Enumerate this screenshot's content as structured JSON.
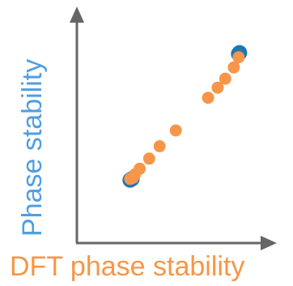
{
  "chart_data": {
    "type": "scatter",
    "title": "",
    "xlabel": "DFT phase stability",
    "ylabel": "Phase stability",
    "grid": false,
    "ticks": false,
    "axis_color": "#666666",
    "xlabel_color": "#F79646",
    "ylabel_color": "#4F9FE0",
    "xlim": [
      0,
      1
    ],
    "ylim": [
      0,
      1
    ],
    "series": [
      {
        "color": "#1F77B4",
        "points": [
          {
            "x": 0.28,
            "y": 0.28
          },
          {
            "x": 0.29,
            "y": 0.285
          },
          {
            "x": 0.85,
            "y": 0.84
          },
          {
            "x": 0.855,
            "y": 0.845
          }
        ]
      },
      {
        "color": "#F7964A",
        "points": [
          {
            "x": 0.28,
            "y": 0.285
          },
          {
            "x": 0.295,
            "y": 0.29
          },
          {
            "x": 0.305,
            "y": 0.305
          },
          {
            "x": 0.33,
            "y": 0.33
          },
          {
            "x": 0.38,
            "y": 0.375
          },
          {
            "x": 0.435,
            "y": 0.43
          },
          {
            "x": 0.52,
            "y": 0.5
          },
          {
            "x": 0.69,
            "y": 0.645
          },
          {
            "x": 0.74,
            "y": 0.69
          },
          {
            "x": 0.78,
            "y": 0.73
          },
          {
            "x": 0.825,
            "y": 0.78
          },
          {
            "x": 0.85,
            "y": 0.825
          }
        ]
      }
    ]
  }
}
